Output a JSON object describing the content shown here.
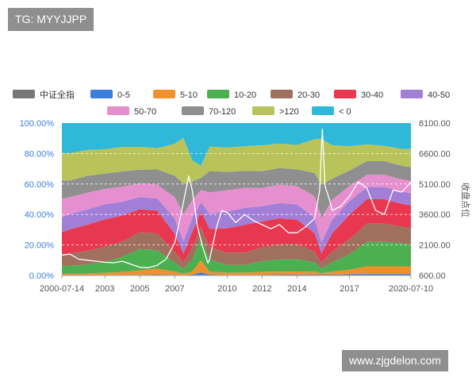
{
  "watermarks": {
    "top_left": "TG: MYYJJPP",
    "bottom_right": "www.zjgdelon.com"
  },
  "chart_data": {
    "type": "area",
    "stacking": "percent",
    "legend_placement": "top",
    "grid": "horizontal dashed",
    "x": [
      2000.54,
      2001,
      2002,
      2003,
      2004,
      2005,
      2006,
      2007,
      2007.5,
      2008,
      2008.5,
      2009,
      2010,
      2011,
      2012,
      2013,
      2014,
      2015,
      2015.4,
      2016,
      2017,
      2018,
      2019,
      2020,
      2020.52
    ],
    "x_ticks": [
      {
        "x": 2000.54,
        "label": "2000-07-14"
      },
      {
        "x": 2003,
        "label": "2003"
      },
      {
        "x": 2005,
        "label": "2005"
      },
      {
        "x": 2007,
        "label": "2007"
      },
      {
        "x": 2010,
        "label": "2010"
      },
      {
        "x": 2012,
        "label": "2012"
      },
      {
        "x": 2014,
        "label": "2014"
      },
      {
        "x": 2017,
        "label": "2017"
      },
      {
        "x": 2020.52,
        "label": "2020-07-10"
      }
    ],
    "xlim": [
      2000.54,
      2020.52
    ],
    "y_left": {
      "ticks": [
        "0.00%",
        "20.00%",
        "40.00%",
        "60.00%",
        "80.00%",
        "100.00%"
      ],
      "ylim": [
        0,
        100
      ]
    },
    "y_right": {
      "label": "收盘点位",
      "ticks": [
        "600.00",
        "2100.00",
        "3600.00",
        "5100.00",
        "6600.00",
        "8100.00"
      ],
      "ylim": [
        600,
        8100
      ]
    },
    "series": [
      {
        "name": "0-5",
        "color": "#3a7fd9",
        "values": [
          0.3,
          0.3,
          0.3,
          0.3,
          0.3,
          0.4,
          0.5,
          0.4,
          0.3,
          0.5,
          2,
          0.5,
          0.4,
          0.4,
          0.4,
          0.5,
          0.6,
          0.5,
          0.5,
          0.5,
          0.8,
          1,
          1,
          1,
          1
        ]
      },
      {
        "name": "5-10",
        "color": "#f0922b",
        "values": [
          1,
          1,
          1,
          1.5,
          2,
          3,
          4,
          2,
          1,
          2,
          8,
          2,
          1.5,
          1.5,
          2,
          2,
          2,
          2,
          1,
          2,
          3,
          5,
          5,
          5,
          5
        ]
      },
      {
        "name": "10-20",
        "color": "#4caf50",
        "values": [
          5,
          5,
          6,
          7,
          10,
          14,
          12,
          6,
          3,
          8,
          14,
          8,
          5,
          5,
          7,
          8,
          8,
          6,
          3,
          6,
          10,
          16,
          16,
          15,
          14
        ]
      },
      {
        "name": "20-30",
        "color": "#a0705f",
        "values": [
          8,
          8,
          9,
          10,
          10,
          11,
          11,
          7,
          4,
          8,
          8,
          8,
          8,
          8,
          9,
          10,
          10,
          7,
          4,
          7,
          10,
          12,
          12,
          11,
          11
        ]
      },
      {
        "name": "30-40",
        "color": "#e8384f",
        "values": [
          14,
          16,
          17,
          18,
          17,
          15,
          15,
          12,
          6,
          10,
          10,
          12,
          16,
          18,
          17,
          17,
          16,
          12,
          6,
          12,
          16,
          16,
          16,
          15,
          15
        ]
      },
      {
        "name": "40-50",
        "color": "#a27fd6",
        "values": [
          10,
          10,
          10,
          10,
          9,
          8,
          8,
          10,
          8,
          9,
          6,
          10,
          11,
          11,
          10,
          10,
          10,
          10,
          7,
          9,
          9,
          8,
          8,
          8,
          8
        ]
      },
      {
        "name": "50-70",
        "color": "#e68fcf",
        "values": [
          12,
          11,
          11,
          10,
          10,
          9,
          9,
          14,
          18,
          12,
          8,
          14,
          14,
          13,
          12,
          12,
          12,
          14,
          16,
          13,
          10,
          8,
          8,
          8,
          8
        ]
      },
      {
        "name": "70-120",
        "color": "#8f8f8f",
        "values": [
          12,
          11,
          11,
          10,
          10,
          9,
          10,
          14,
          20,
          12,
          8,
          14,
          12,
          11,
          11,
          11,
          11,
          15,
          22,
          14,
          10,
          9,
          9,
          9,
          9
        ]
      },
      {
        "name": ">120",
        "color": "#b8c45a",
        "values": [
          18,
          18,
          17,
          16,
          16,
          15,
          14,
          21,
          30,
          14,
          8,
          16,
          16,
          16,
          17,
          16,
          16,
          22,
          30,
          22,
          16,
          11,
          10,
          11,
          12
        ]
      },
      {
        "name": "< 0",
        "color": "#30b8d8",
        "values": [
          19.7,
          19.7,
          17.7,
          17.2,
          15.7,
          15.6,
          16.5,
          13.6,
          9.7,
          24.5,
          28,
          15.5,
          16.1,
          15.1,
          14.6,
          13.5,
          14.4,
          10.5,
          10.5,
          14.5,
          15.2,
          14,
          15,
          17,
          17
        ]
      }
    ],
    "line": {
      "name": "中证全指",
      "color": "#ffffff",
      "legend_color": "#777777",
      "axis": "right",
      "x": [
        2000.54,
        2001,
        2001.5,
        2002,
        2002.5,
        2003,
        2003.5,
        2004,
        2004.5,
        2005,
        2005.5,
        2006,
        2006.5,
        2007,
        2007.4,
        2007.8,
        2008,
        2008.3,
        2008.6,
        2008.9,
        2009,
        2009.4,
        2009.7,
        2010,
        2010.5,
        2011,
        2011.5,
        2012,
        2012.5,
        2013,
        2013.5,
        2014,
        2014.5,
        2015,
        2015.3,
        2015.45,
        2015.6,
        2015.9,
        2016,
        2016.5,
        2017,
        2017.5,
        2018,
        2018.5,
        2019,
        2019.5,
        2020,
        2020.52
      ],
      "values": [
        1600,
        1650,
        1400,
        1350,
        1300,
        1250,
        1220,
        1300,
        1150,
        1000,
        980,
        1100,
        1400,
        2200,
        3800,
        5500,
        4800,
        3000,
        2000,
        1200,
        1400,
        3000,
        3800,
        3700,
        3200,
        3600,
        3300,
        3100,
        2900,
        3100,
        2700,
        2700,
        3000,
        3400,
        4800,
        7800,
        5000,
        4200,
        3800,
        4000,
        4500,
        5200,
        4900,
        3800,
        3600,
        4800,
        4700,
        5200
      ]
    }
  }
}
